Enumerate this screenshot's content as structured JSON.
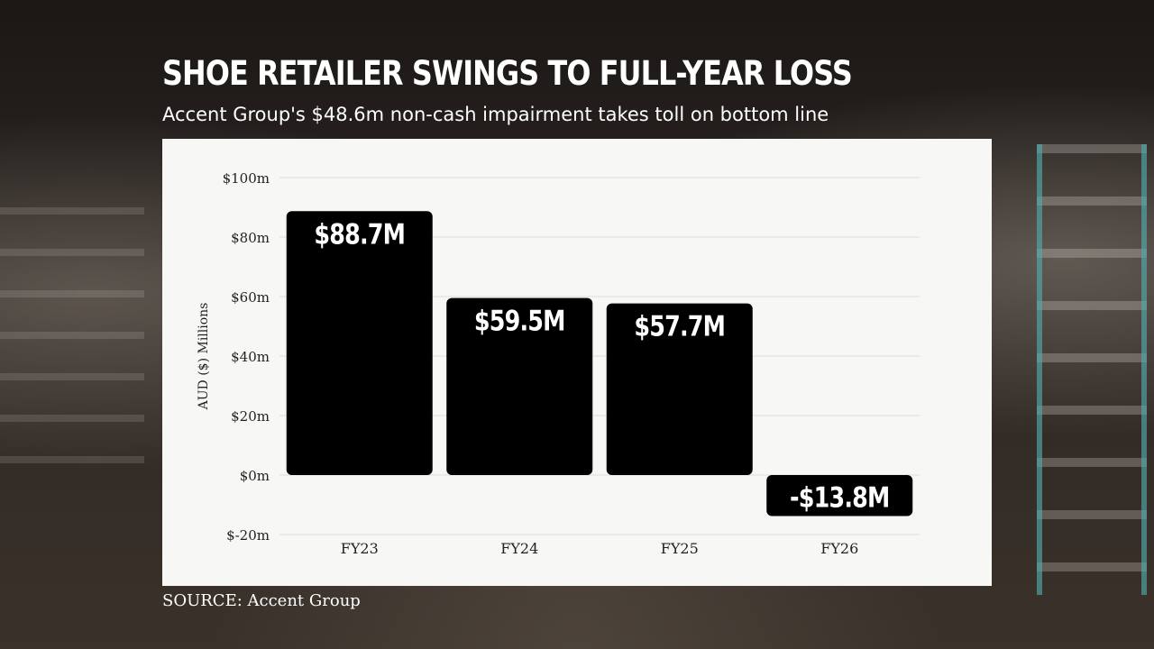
{
  "title": "SHOE RETAILER SWINGS TO FULL-YEAR LOSS",
  "subtitle": "Accent Group's $48.6m non-cash impairment takes toll on bottom line",
  "source": "SOURCE: Accent Group",
  "colors": {
    "bar": "#000000",
    "panel": "#f7f7f6",
    "grid": "#dcdcdc",
    "text": "#ffffff"
  },
  "chart_data": {
    "type": "bar",
    "categories": [
      "FY23",
      "FY24",
      "FY25",
      "FY26"
    ],
    "values": [
      88.7,
      59.5,
      57.7,
      -13.8
    ],
    "data_labels": [
      "$88.7M",
      "$59.5M",
      "$57.7M",
      "-$13.8M"
    ],
    "ylabel": "AUD ($) Millions",
    "xlabel": "",
    "ylim": [
      -20,
      100
    ],
    "yticks": [
      100,
      80,
      60,
      40,
      20,
      0,
      -20
    ],
    "ytick_labels": [
      "$100m",
      "$80m",
      "$60m",
      "$40m",
      "$20m",
      "$0m",
      "$-20m"
    ],
    "grid": true,
    "legend": "none"
  }
}
